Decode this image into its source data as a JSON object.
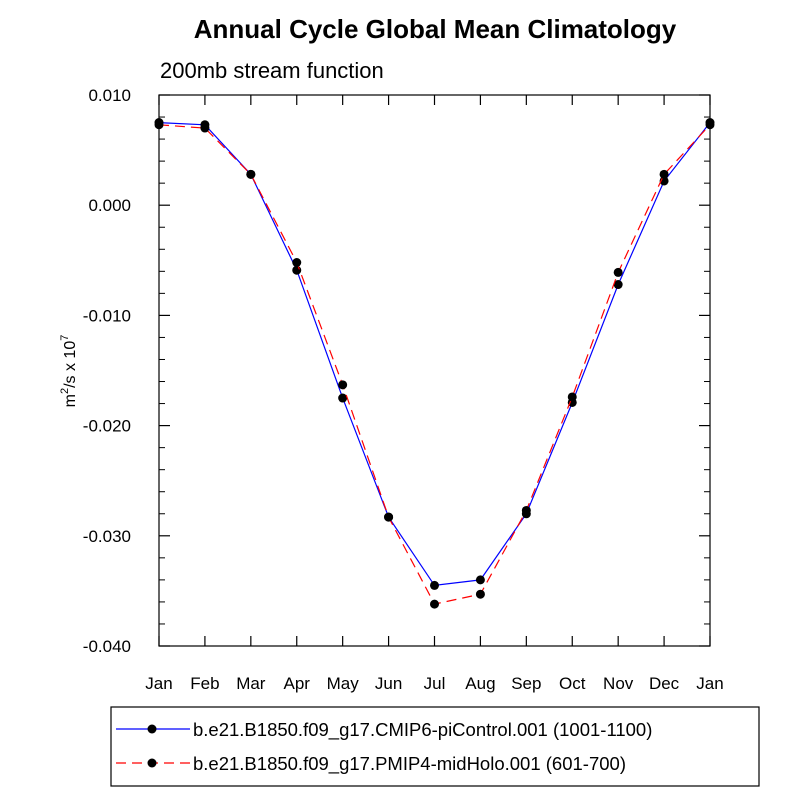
{
  "chart_data": {
    "type": "line",
    "title": "Annual Cycle Global Mean Climatology",
    "subtitle": "200mb stream function",
    "ylabel": "m²/s x 10⁷",
    "ylabel_parts": {
      "base": "m",
      "sup1": "2",
      "mid": "/s x 10",
      "sup2": "7"
    },
    "xlabel": "",
    "categories": [
      "Jan",
      "Feb",
      "Mar",
      "Apr",
      "May",
      "Jun",
      "Jul",
      "Aug",
      "Sep",
      "Oct",
      "Nov",
      "Dec",
      "Jan"
    ],
    "ylim": [
      -0.04,
      0.01
    ],
    "yticks": [
      {
        "value": 0.01,
        "label": "0.010"
      },
      {
        "value": 0.0,
        "label": "0.000"
      },
      {
        "value": -0.01,
        "label": "-0.010"
      },
      {
        "value": -0.02,
        "label": "-0.020"
      },
      {
        "value": -0.03,
        "label": "-0.030"
      },
      {
        "value": -0.04,
        "label": "-0.040"
      }
    ],
    "grid": false,
    "legend_position": "bottom",
    "series": [
      {
        "name": "b.e21.B1850.f09_g17.CMIP6-piControl.001 (1001-1100)",
        "color": "#0000ff",
        "dash": "solid",
        "marker": "filled-circle",
        "values": [
          0.0075,
          0.0073,
          0.0028,
          -0.0059,
          -0.0175,
          -0.0283,
          -0.0345,
          -0.034,
          -0.028,
          -0.0179,
          -0.0072,
          0.0022,
          0.0075
        ]
      },
      {
        "name": "b.e21.B1850.f09_g17.PMIP4-midHolo.001 (601-700)",
        "color": "#ff0000",
        "dash": "dashed",
        "marker": "filled-circle",
        "values": [
          0.0073,
          0.007,
          0.0028,
          -0.0052,
          -0.0163,
          -0.0283,
          -0.0362,
          -0.0353,
          -0.0277,
          -0.0174,
          -0.0061,
          0.0028,
          0.0073
        ]
      }
    ]
  }
}
